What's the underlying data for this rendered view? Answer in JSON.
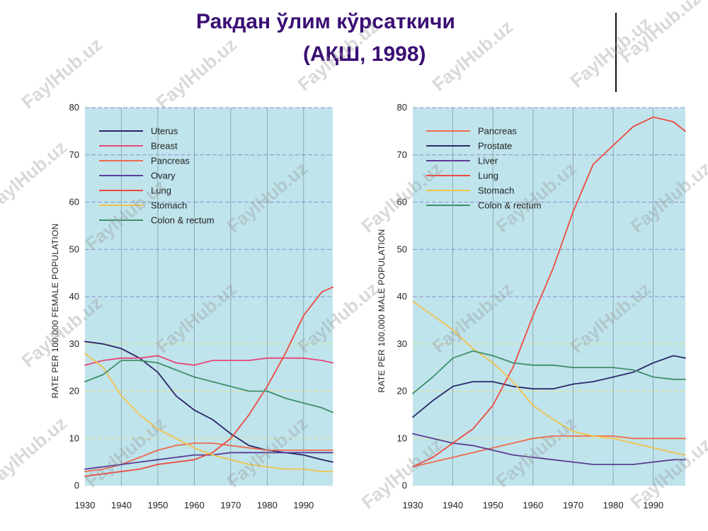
{
  "title": {
    "line1": "Ракдан ўлим кўрсаткичи",
    "line2": "(АҚШ, 1998)"
  },
  "watermark": "FaylHub.uz",
  "colors": {
    "plot_bg": "#bfe4ec",
    "grid": "#8f8fcf",
    "grid_yellow": "#e9e28a",
    "uterus": "#2b2466",
    "breast": "#e8457a",
    "pancreas": "#ef6a4c",
    "ovary": "#5a3e99",
    "lung": "#ee4a3e",
    "stomach": "#f3c24a",
    "colon": "#3f8f6a",
    "prostate": "#2d2a6b",
    "liver": "#5b3d93"
  },
  "chart_data": [
    {
      "type": "line",
      "ylabel": "RATE PER 100,000 FEMALE POPULATION",
      "xlim": [
        1930,
        1998
      ],
      "ylim": [
        0,
        80
      ],
      "xticks": [
        1930,
        1940,
        1950,
        1960,
        1970,
        1980,
        1990
      ],
      "yticks": [
        0,
        10,
        20,
        30,
        40,
        50,
        60,
        70,
        80
      ],
      "grid": true,
      "legend_position": "top-left",
      "series": [
        {
          "name": "Uterus",
          "color_key": "uterus",
          "x": [
            1930,
            1935,
            1940,
            1945,
            1950,
            1955,
            1960,
            1965,
            1970,
            1975,
            1980,
            1985,
            1990,
            1995,
            1998
          ],
          "y": [
            30.5,
            30,
            29,
            27,
            24,
            19,
            16,
            14,
            11,
            8.5,
            7.5,
            7,
            6.5,
            5.5,
            5
          ]
        },
        {
          "name": "Breast",
          "color_key": "breast",
          "x": [
            1930,
            1935,
            1940,
            1945,
            1950,
            1955,
            1960,
            1965,
            1970,
            1975,
            1980,
            1985,
            1990,
            1995,
            1998
          ],
          "y": [
            25.5,
            26.5,
            27,
            27,
            27.5,
            26,
            25.5,
            26.5,
            26.5,
            26.5,
            27,
            27,
            27,
            26.5,
            26
          ]
        },
        {
          "name": "Pancreas",
          "color_key": "pancreas",
          "x": [
            1930,
            1935,
            1940,
            1945,
            1950,
            1955,
            1960,
            1965,
            1970,
            1975,
            1980,
            1985,
            1990,
            1995,
            1998
          ],
          "y": [
            3,
            3.5,
            4.5,
            6,
            7.5,
            8.5,
            9,
            9,
            8.5,
            8,
            7.5,
            7.5,
            7.5,
            7.5,
            7.5
          ]
        },
        {
          "name": "Ovary",
          "color_key": "ovary",
          "x": [
            1930,
            1935,
            1940,
            1945,
            1950,
            1955,
            1960,
            1965,
            1970,
            1975,
            1980,
            1985,
            1990,
            1995,
            1998
          ],
          "y": [
            3.5,
            4,
            4.5,
            5,
            5.5,
            6,
            6.5,
            6.5,
            7,
            7,
            7,
            7,
            7,
            7,
            7
          ]
        },
        {
          "name": "Lung",
          "color_key": "lung",
          "x": [
            1930,
            1935,
            1940,
            1945,
            1950,
            1955,
            1960,
            1965,
            1970,
            1975,
            1980,
            1985,
            1990,
            1995,
            1998
          ],
          "y": [
            2,
            2.5,
            3,
            3.5,
            4.5,
            5,
            5.5,
            7,
            10,
            15,
            21,
            28,
            36,
            41,
            42
          ]
        },
        {
          "name": "Stomach",
          "color_key": "stomach",
          "x": [
            1930,
            1935,
            1940,
            1945,
            1950,
            1955,
            1960,
            1965,
            1970,
            1975,
            1980,
            1985,
            1990,
            1995,
            1998
          ],
          "y": [
            28,
            25,
            19,
            15,
            12,
            10,
            8,
            6.5,
            5.5,
            4.5,
            4,
            3.5,
            3.5,
            3,
            3
          ]
        },
        {
          "name": "Colon & rectum",
          "color_key": "colon",
          "x": [
            1930,
            1935,
            1940,
            1945,
            1950,
            1955,
            1960,
            1965,
            1970,
            1975,
            1980,
            1985,
            1990,
            1995,
            1998
          ],
          "y": [
            22,
            23.5,
            26.5,
            26.5,
            26,
            24.5,
            23,
            22,
            21,
            20,
            20,
            18.5,
            17.5,
            16.5,
            15.5
          ]
        }
      ]
    },
    {
      "type": "line",
      "ylabel": "RATE PER 100,000 MALE POPULATION",
      "xlim": [
        1930,
        1998
      ],
      "ylim": [
        0,
        80
      ],
      "xticks": [
        1930,
        1940,
        1950,
        1960,
        1970,
        1980,
        1990
      ],
      "yticks": [
        0,
        10,
        20,
        30,
        40,
        50,
        60,
        70,
        80
      ],
      "grid": true,
      "legend_position": "top-left",
      "series": [
        {
          "name": "Pancreas",
          "color_key": "pancreas",
          "x": [
            1930,
            1935,
            1940,
            1945,
            1950,
            1955,
            1960,
            1965,
            1970,
            1975,
            1980,
            1985,
            1990,
            1995,
            1998
          ],
          "y": [
            4,
            5,
            6,
            7,
            8,
            9,
            10,
            10.5,
            10.5,
            10.5,
            10.5,
            10,
            10,
            10,
            10
          ]
        },
        {
          "name": "Prostate",
          "color_key": "prostate",
          "x": [
            1930,
            1935,
            1940,
            1945,
            1950,
            1955,
            1960,
            1965,
            1970,
            1975,
            1980,
            1985,
            1990,
            1995,
            1998
          ],
          "y": [
            14.5,
            18,
            21,
            22,
            22,
            21,
            20.5,
            20.5,
            21.5,
            22,
            23,
            24,
            26,
            27.5,
            27
          ]
        },
        {
          "name": "Liver",
          "color_key": "liver",
          "x": [
            1930,
            1935,
            1940,
            1945,
            1950,
            1955,
            1960,
            1965,
            1970,
            1975,
            1980,
            1985,
            1990,
            1995,
            1998
          ],
          "y": [
            11,
            10,
            9,
            8.5,
            7.5,
            6.5,
            6,
            5.5,
            5,
            4.5,
            4.5,
            4.5,
            5,
            5.5,
            5.5
          ]
        },
        {
          "name": "Lung",
          "color_key": "lung",
          "x": [
            1930,
            1935,
            1940,
            1945,
            1950,
            1955,
            1960,
            1965,
            1970,
            1975,
            1980,
            1985,
            1990,
            1995,
            1998
          ],
          "y": [
            4,
            6,
            9,
            12,
            17,
            25,
            36,
            46,
            58,
            68,
            72,
            76,
            78,
            77,
            75
          ]
        },
        {
          "name": "Stomach",
          "color_key": "stomach",
          "x": [
            1930,
            1935,
            1940,
            1945,
            1950,
            1955,
            1960,
            1965,
            1970,
            1975,
            1980,
            1985,
            1990,
            1995,
            1998
          ],
          "y": [
            39,
            36,
            33,
            29,
            26,
            22,
            17,
            14,
            11.5,
            10.5,
            10,
            9,
            8,
            7,
            6.5
          ]
        },
        {
          "name": "Colon & rectum",
          "color_key": "colon",
          "x": [
            1930,
            1935,
            1940,
            1945,
            1950,
            1955,
            1960,
            1965,
            1970,
            1975,
            1980,
            1985,
            1990,
            1995,
            1998
          ],
          "y": [
            19.5,
            23,
            27,
            28.5,
            27.5,
            26,
            25.5,
            25.5,
            25,
            25,
            25,
            24.5,
            23,
            22.5,
            22.5
          ]
        }
      ]
    }
  ]
}
